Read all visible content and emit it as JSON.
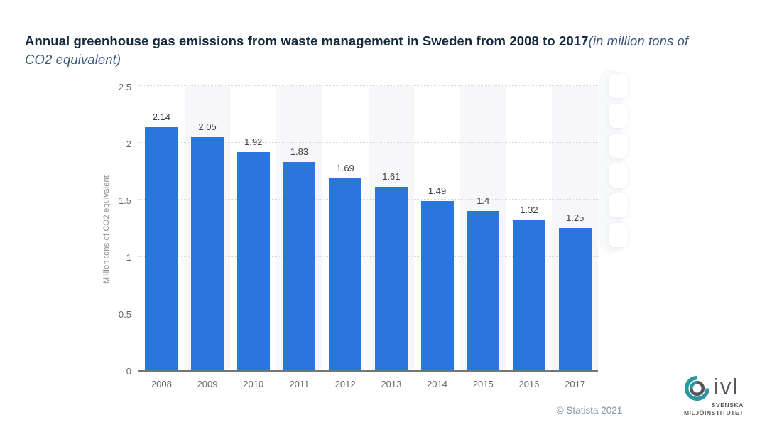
{
  "title": {
    "main": "Annual greenhouse gas emissions from waste management in Sweden from 2008 to 2017",
    "unit": "(in million tons of CO2 equivalent)"
  },
  "chart_data": {
    "type": "bar",
    "categories": [
      "2008",
      "2009",
      "2010",
      "2011",
      "2012",
      "2013",
      "2014",
      "2015",
      "2016",
      "2017"
    ],
    "values": [
      2.14,
      2.05,
      1.92,
      1.83,
      1.69,
      1.61,
      1.49,
      1.4,
      1.32,
      1.25
    ],
    "value_labels": [
      "2.14",
      "2.05",
      "1.92",
      "1.83",
      "1.69",
      "1.61",
      "1.49",
      "1.4",
      "1.32",
      "1.25"
    ],
    "title": "Annual greenhouse gas emissions from waste management in Sweden from 2008 to 2017 (in million tons of CO2 equivalent)",
    "xlabel": "",
    "ylabel": "Million tons of CO2 equivalent",
    "ylim": [
      0,
      2.5
    ],
    "yticks": [
      0,
      0.5,
      1,
      1.5,
      2,
      2.5
    ],
    "ytick_labels": [
      "0",
      "0.5",
      "1",
      "1.5",
      "2",
      "2.5"
    ],
    "grid": "horizontal dotted lines at 0.5 intervals",
    "legend": "none",
    "bar_color": "#2b76dc",
    "band_color": "#f7f7f9",
    "alternating_column_bands": "gray band behind every second year column starting 2009"
  },
  "toolbar": {
    "button_count": 6
  },
  "credit": {
    "text": "© Statista 2021"
  },
  "logo": {
    "name": "ivl",
    "subline1": "SVENSKA",
    "subline2": "MILJÖINSTITUTET",
    "teal": "#2e96a3",
    "gray": "#54585c"
  },
  "colors": {
    "title_main": "#15293e",
    "title_unit": "#3a5778",
    "bar": "#2b76dc",
    "axis_text": "#666666",
    "credit_text": "#8292ab"
  }
}
